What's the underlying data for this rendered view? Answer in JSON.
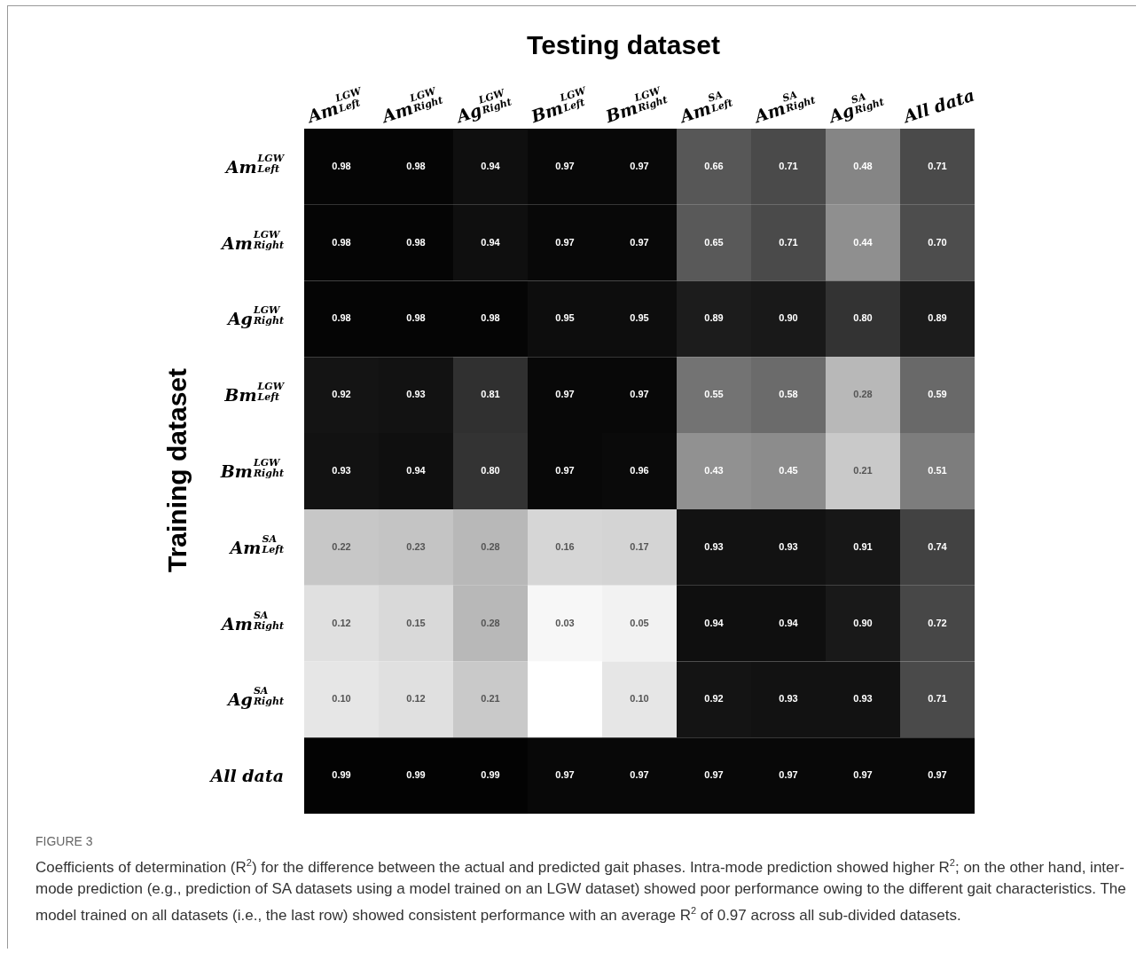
{
  "chart_data": {
    "type": "heatmap",
    "title": "Testing dataset",
    "ylabel": "Training dataset",
    "categories": [
      "Am$^{LGW}$$_{Left}$",
      "Am$^{LGW}$$_{Right}$",
      "Ag$^{LGW}$$_{Right}$",
      "Bm$^{LGW}$$_{Left}$",
      "Bm$^{LGW}$$_{Right}$",
      "Am$^{SA}$$_{Left}$",
      "Am$^{SA}$$_{Right}$",
      "Ag$^{SA}$$_{Right}$",
      "All data"
    ],
    "y_categories": [
      "Am$^{LGW}$$_{Left}$",
      "Am$^{LGW}$$_{Right}$",
      "Ag$^{LGW}$$_{Right}$",
      "Bm$^{LGW}$$_{Left}$",
      "Bm$^{LGW}$$_{Right}$",
      "Am$^{SA}$$_{Left}$",
      "Am$^{SA}$$_{Right}$",
      "Ag$^{SA}$$_{Right}$",
      "All data"
    ],
    "cells": [
      [
        0.98,
        0.98,
        0.94,
        0.97,
        0.97,
        0.66,
        0.71,
        0.48,
        0.71
      ],
      [
        0.98,
        0.98,
        0.94,
        0.97,
        0.97,
        0.65,
        0.71,
        0.44,
        0.7
      ],
      [
        0.98,
        0.98,
        0.98,
        0.95,
        0.95,
        0.89,
        0.9,
        0.8,
        0.89
      ],
      [
        0.92,
        0.93,
        0.81,
        0.97,
        0.97,
        0.55,
        0.58,
        0.28,
        0.59
      ],
      [
        0.93,
        0.94,
        0.8,
        0.97,
        0.96,
        0.43,
        0.45,
        0.21,
        0.51
      ],
      [
        0.22,
        0.23,
        0.28,
        0.16,
        0.17,
        0.93,
        0.93,
        0.91,
        0.74
      ],
      [
        0.12,
        0.15,
        0.28,
        0.03,
        0.05,
        0.94,
        0.94,
        0.9,
        0.72
      ],
      [
        0.1,
        0.12,
        0.21,
        null,
        0.1,
        0.92,
        0.93,
        0.93,
        0.71
      ],
      [
        0.99,
        0.99,
        0.99,
        0.97,
        0.97,
        0.97,
        0.97,
        0.97,
        0.97
      ]
    ],
    "cell_labels": [
      [
        "0.98",
        "0.98",
        "0.94",
        "0.97",
        "0.97",
        "0.66",
        "0.71",
        "0.48",
        "0.71"
      ],
      [
        "0.98",
        "0.98",
        "0.94",
        "0.97",
        "0.97",
        "0.65",
        "0.71",
        "0.44",
        "0.70"
      ],
      [
        "0.98",
        "0.98",
        "0.98",
        "0.95",
        "0.95",
        "0.89",
        "0.90",
        "0.80",
        "0.89"
      ],
      [
        "0.92",
        "0.93",
        "0.81",
        "0.97",
        "0.97",
        "0.55",
        "0.58",
        "0.28",
        "0.59"
      ],
      [
        "0.93",
        "0.94",
        "0.80",
        "0.97",
        "0.96",
        "0.43",
        "0.45",
        "0.21",
        "0.51"
      ],
      [
        "0.22",
        "0.23",
        "0.28",
        "0.16",
        "0.17",
        "0.93",
        "0.93",
        "0.91",
        "0.74"
      ],
      [
        "0.12",
        "0.15",
        "0.28",
        "0.03",
        "0.05",
        "0.94",
        "0.94",
        "0.90",
        "0.72"
      ],
      [
        "0.10",
        "0.12",
        "0.21",
        null,
        "0.10",
        "0.92",
        "0.93",
        "0.93",
        "0.71"
      ],
      [
        "0.99",
        "0.99",
        "0.99",
        "0.97",
        "0.97",
        "0.97",
        "0.97",
        "0.97",
        "0.97"
      ]
    ],
    "annotations": [
      "FIGURE 3",
      "Coefficients of determination (R$^{2}$) for the difference between the actual and predicted gait phases. Intra-mode prediction showed higher R$^{2}$; on the other hand, inter-mode prediction (e.g., prediction of SA datasets using a model trained on an LGW dataset) showed poor performance owing to the different gait characteristics. The model trained on all datasets (i.e., the last row) showed consistent performance with an average R$^{2}$ of 0.97 across all sub-divided datasets."
    ]
  }
}
